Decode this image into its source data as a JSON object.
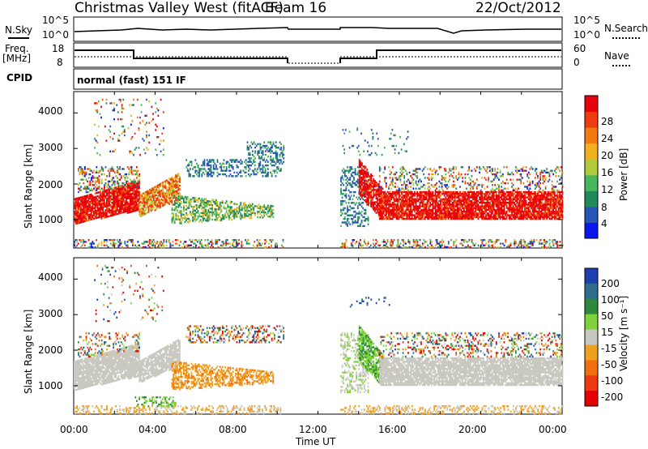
{
  "header": {
    "title": "Christmas Valley West (fitACF)",
    "beam": "Beam 16",
    "date": "22/Oct/2012"
  },
  "strips": {
    "nsky_label": "N.Sky",
    "nsearch_label": "N.Search",
    "nsky_ticks": [
      "10^5",
      "10^0"
    ],
    "freq_label": "Freq.",
    "freq_unit": "[MHz]",
    "freq_ticks": [
      "18",
      "8"
    ],
    "nave_label": "Nave",
    "nave_ticks": [
      "60",
      "0"
    ],
    "cpid_label": "CPID",
    "cpid_value": "normal (fast) 151 IF"
  },
  "chart_data": [
    {
      "type": "heatmap",
      "panel": "power",
      "ylabel": "Slant Range [km]",
      "xlabel": "",
      "y_ticks": [
        "1000",
        "2000",
        "3000",
        "4000"
      ],
      "ylim": [
        200,
        4600
      ],
      "xlim": [
        0,
        24
      ],
      "data_gap_hours": [
        10.5,
        13.1
      ],
      "colorbar": {
        "label": "Power [dB]",
        "ticks": [
          "4",
          "8",
          "12",
          "16",
          "20",
          "24",
          "28"
        ],
        "colors": [
          "#0a16ee",
          "#2a55b8",
          "#1f8b5a",
          "#48b65c",
          "#b2cb3c",
          "#f0b020",
          "#f27a10",
          "#ef3c0e",
          "#e8000a"
        ]
      }
    },
    {
      "type": "heatmap",
      "panel": "velocity",
      "ylabel": "Slant Range [km]",
      "xlabel": "Time UT",
      "y_ticks": [
        "1000",
        "2000",
        "3000",
        "4000"
      ],
      "ylim": [
        200,
        4600
      ],
      "xlim": [
        0,
        24
      ],
      "x_ticks": [
        "00:00",
        "04:00",
        "08:00",
        "12:00",
        "16:00",
        "20:00",
        "00:00"
      ],
      "data_gap_hours": [
        10.5,
        13.1
      ],
      "colorbar": {
        "label": "Velocity [m s⁻¹]",
        "ticks": [
          "200",
          "100",
          "50",
          "15",
          "-15",
          "-50",
          "-100",
          "-200"
        ],
        "colors": [
          "#1e3fb0",
          "#2f6d8a",
          "#2e8a3a",
          "#7fd23a",
          "#c8c8c0",
          "#f0a020",
          "#f07010",
          "#ee3a0e",
          "#e60000"
        ]
      }
    }
  ]
}
